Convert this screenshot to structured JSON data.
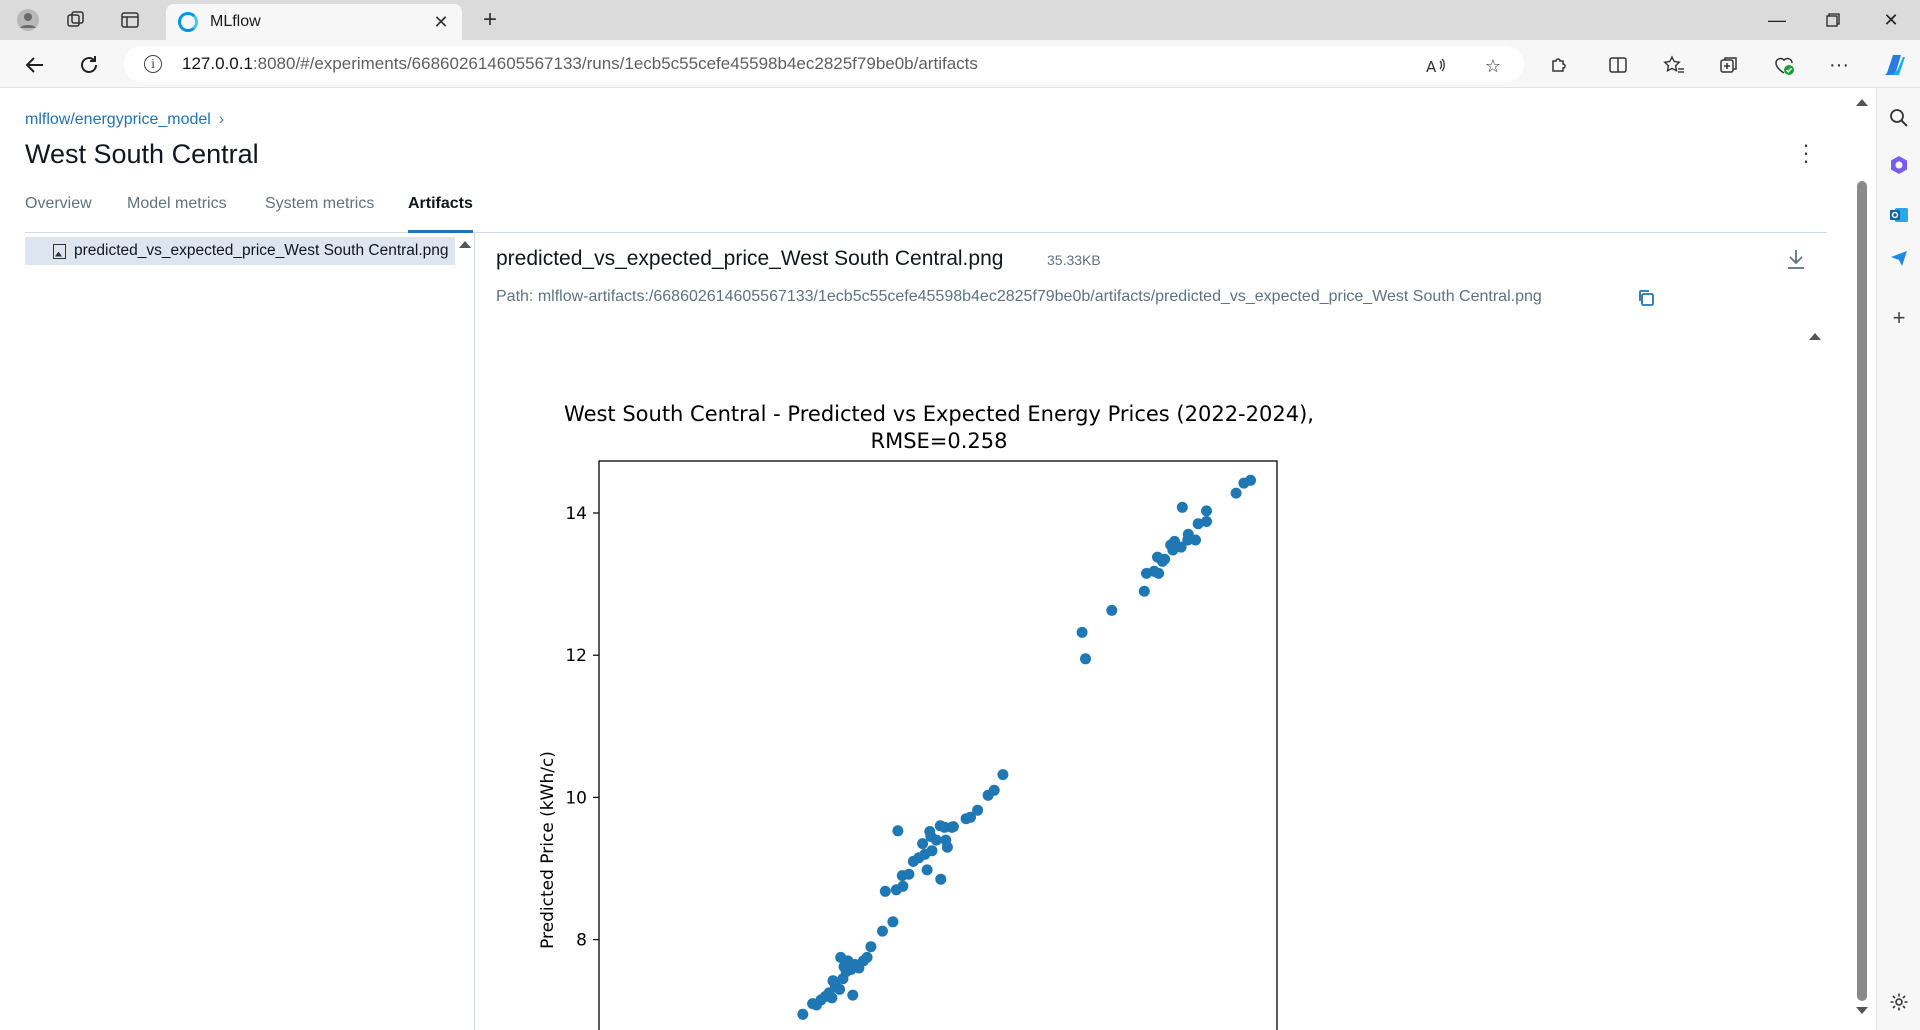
{
  "browser": {
    "tab_title": "MLflow",
    "url_host": "127.0.0.1",
    "url_path": ":8080/#/experiments/668602614605567133/runs/1ecb5c55cefe45598b4ec2825f79be0b/artifacts"
  },
  "breadcrumb": {
    "experiment": "mlflow/energyprice_model",
    "separator": "›"
  },
  "run": {
    "title": "West South Central"
  },
  "tabs": [
    {
      "label": "Overview"
    },
    {
      "label": "Model metrics"
    },
    {
      "label": "System metrics"
    },
    {
      "label": "Artifacts"
    }
  ],
  "artifacts": {
    "files": [
      {
        "name": "predicted_vs_expected_price_West South Central.png"
      }
    ],
    "selected_name": "predicted_vs_expected_price_West South Central.png",
    "selected_size": "35.33KB",
    "path_label": "Path:",
    "path": "mlflow-artifacts:/668602614605567133/1ecb5c55cefe45598b4ec2825f79be0b/artifacts/predicted_vs_expected_price_West South Central.png"
  },
  "colors": {
    "accent": "#2272b4",
    "point": "#1f77b4",
    "selected_row": "#dde6f0"
  },
  "chart_data": {
    "type": "scatter",
    "title_line1": "West South Central - Predicted vs Expected Energy Prices (2022-2024),",
    "title_line2": "RMSE=0.258",
    "ylabel": "Predicted Price (kWh/c)",
    "ylim": [
      6.7,
      14.9
    ],
    "yticks": [
      8,
      10,
      12,
      14
    ],
    "ytick_labels": [
      "8",
      "10",
      "12",
      "14"
    ],
    "xlim": [
      0,
      100
    ],
    "points": [
      [
        16.5,
        6.95
      ],
      [
        18.3,
        7.1
      ],
      [
        19.0,
        7.08
      ],
      [
        19.8,
        7.15
      ],
      [
        20.6,
        7.2
      ],
      [
        21.3,
        7.25
      ],
      [
        21.8,
        7.18
      ],
      [
        22.4,
        7.35
      ],
      [
        22.0,
        7.42
      ],
      [
        23.2,
        7.3
      ],
      [
        23.8,
        7.45
      ],
      [
        24.4,
        7.55
      ],
      [
        24.0,
        7.62
      ],
      [
        23.4,
        7.75
      ],
      [
        24.7,
        7.7
      ],
      [
        25.3,
        7.58
      ],
      [
        26.0,
        7.65
      ],
      [
        25.6,
        7.22
      ],
      [
        26.7,
        7.6
      ],
      [
        27.5,
        7.7
      ],
      [
        28.2,
        7.75
      ],
      [
        28.9,
        7.9
      ],
      [
        31.0,
        8.12
      ],
      [
        32.9,
        8.25
      ],
      [
        31.5,
        8.68
      ],
      [
        33.5,
        8.7
      ],
      [
        34.6,
        8.9
      ],
      [
        35.8,
        8.92
      ],
      [
        36.6,
        9.1
      ],
      [
        34.7,
        8.75
      ],
      [
        37.6,
        9.15
      ],
      [
        38.7,
        9.2
      ],
      [
        40.0,
        9.25
      ],
      [
        38.3,
        9.35
      ],
      [
        39.8,
        9.45
      ],
      [
        39.6,
        9.52
      ],
      [
        40.8,
        9.4
      ],
      [
        41.5,
        9.6
      ],
      [
        42.5,
        9.4
      ],
      [
        42.8,
        9.3
      ],
      [
        42.3,
        9.58
      ],
      [
        43.6,
        9.58
      ],
      [
        39.1,
        8.98
      ],
      [
        41.6,
        8.85
      ],
      [
        43.9,
        9.59
      ],
      [
        46.2,
        9.7
      ],
      [
        47.0,
        9.72
      ],
      [
        48.3,
        9.82
      ],
      [
        50.2,
        10.03
      ],
      [
        51.3,
        10.1
      ],
      [
        52.9,
        10.32
      ],
      [
        33.8,
        9.53
      ],
      [
        67.3,
        12.32
      ],
      [
        67.9,
        11.95
      ],
      [
        72.7,
        12.63
      ],
      [
        78.6,
        12.9
      ],
      [
        79.0,
        13.15
      ],
      [
        80.4,
        13.18
      ],
      [
        81.2,
        13.15
      ],
      [
        81.9,
        13.32
      ],
      [
        82.3,
        13.35
      ],
      [
        81.0,
        13.38
      ],
      [
        83.4,
        13.55
      ],
      [
        84.1,
        13.6
      ],
      [
        85.3,
        13.52
      ],
      [
        86.5,
        13.62
      ],
      [
        86.6,
        13.7
      ],
      [
        87.9,
        13.62
      ],
      [
        88.4,
        13.85
      ],
      [
        89.9,
        13.88
      ],
      [
        89.9,
        14.03
      ],
      [
        85.5,
        14.08
      ],
      [
        95.3,
        14.28
      ],
      [
        96.7,
        14.42
      ],
      [
        97.9,
        14.46
      ],
      [
        83.8,
        13.48
      ]
    ]
  }
}
